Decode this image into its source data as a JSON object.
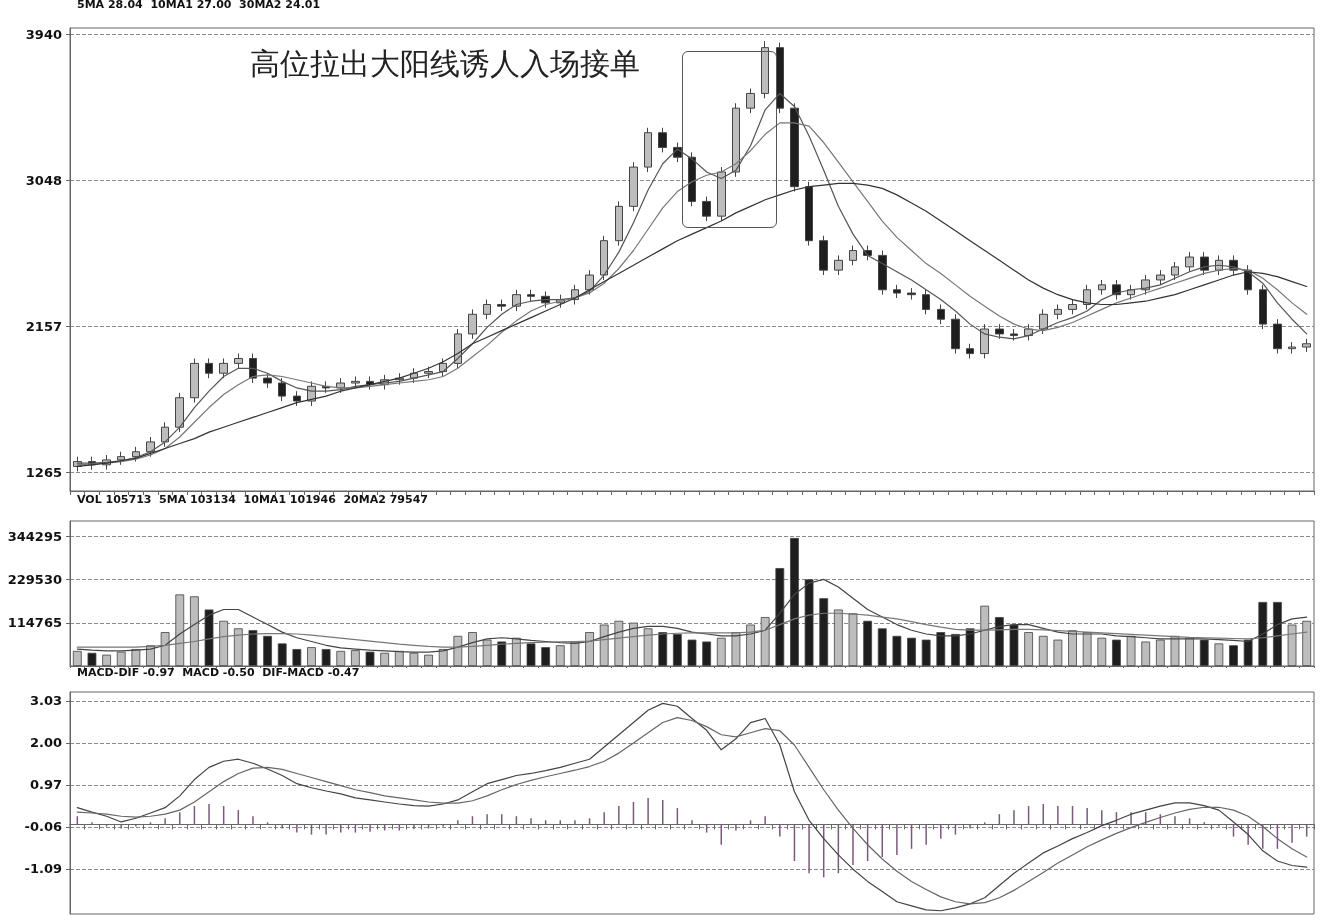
{
  "chart_data": [
    {
      "type": "candlestick",
      "subtitle": "5MA 28.04  10MA1 27.00  30MA2 24.01",
      "annotations": [
        "高位拉出大阳线诱人入场接单"
      ],
      "categories": [
        null,
        null,
        null,
        null,
        null,
        null,
        null,
        null,
        null,
        null,
        null,
        null,
        null,
        null,
        null,
        null,
        null,
        null,
        null,
        null,
        null,
        null,
        null,
        null,
        null,
        null,
        null,
        null,
        null,
        null,
        null,
        null,
        null,
        null,
        null,
        null,
        null,
        null,
        null,
        null,
        null,
        null,
        null,
        null,
        null,
        null,
        null,
        null,
        null,
        null,
        null,
        null,
        null,
        null,
        null,
        null,
        null,
        null,
        null,
        null,
        null,
        null,
        null,
        null,
        null,
        null,
        null,
        null,
        null,
        null,
        null,
        null,
        null,
        null,
        null,
        null,
        null,
        null,
        null,
        null,
        null,
        null,
        null,
        null,
        null
      ],
      "series": [
        {
          "ohlc": [
            [
              1300,
              1360,
              1270,
              1330
            ],
            [
              1330,
              1360,
              1280,
              1310
            ],
            [
              1310,
              1370,
              1280,
              1340
            ],
            [
              1340,
              1390,
              1310,
              1360
            ],
            [
              1360,
              1420,
              1330,
              1390
            ],
            [
              1390,
              1480,
              1360,
              1450
            ],
            [
              1450,
              1570,
              1420,
              1540
            ],
            [
              1540,
              1750,
              1510,
              1720
            ],
            [
              1720,
              1960,
              1690,
              1930
            ],
            [
              1930,
              1960,
              1840,
              1870
            ],
            [
              1870,
              1960,
              1840,
              1930
            ],
            [
              1930,
              1990,
              1900,
              1960
            ],
            [
              1960,
              1990,
              1810,
              1840
            ],
            [
              1840,
              1870,
              1780,
              1810
            ],
            [
              1810,
              1840,
              1700,
              1730
            ],
            [
              1730,
              1760,
              1670,
              1700
            ],
            [
              1700,
              1820,
              1670,
              1790
            ],
            [
              1790,
              1820,
              1750,
              1780
            ],
            [
              1780,
              1840,
              1750,
              1810
            ],
            [
              1810,
              1850,
              1780,
              1820
            ],
            [
              1820,
              1850,
              1770,
              1800
            ],
            [
              1800,
              1860,
              1770,
              1830
            ],
            [
              1830,
              1870,
              1800,
              1840
            ],
            [
              1840,
              1900,
              1810,
              1870
            ],
            [
              1870,
              1910,
              1840,
              1880
            ],
            [
              1880,
              1960,
              1850,
              1930
            ],
            [
              1930,
              2140,
              1900,
              2110
            ],
            [
              2110,
              2260,
              2080,
              2230
            ],
            [
              2230,
              2320,
              2200,
              2290
            ],
            [
              2290,
              2320,
              2250,
              2280
            ],
            [
              2280,
              2380,
              2250,
              2350
            ],
            [
              2350,
              2380,
              2310,
              2340
            ],
            [
              2340,
              2370,
              2270,
              2300
            ],
            [
              2300,
              2350,
              2270,
              2320
            ],
            [
              2320,
              2410,
              2290,
              2380
            ],
            [
              2380,
              2500,
              2350,
              2470
            ],
            [
              2470,
              2710,
              2440,
              2680
            ],
            [
              2680,
              2920,
              2650,
              2890
            ],
            [
              2890,
              3160,
              2860,
              3130
            ],
            [
              3130,
              3370,
              3100,
              3340
            ],
            [
              3340,
              3370,
              3220,
              3250
            ],
            [
              3250,
              3280,
              3160,
              3190
            ],
            [
              3190,
              3220,
              2890,
              2920
            ],
            [
              2920,
              2950,
              2800,
              2830
            ],
            [
              2830,
              3130,
              2800,
              3100
            ],
            [
              3100,
              3520,
              3070,
              3490
            ],
            [
              3490,
              3610,
              3460,
              3580
            ],
            [
              3580,
              3900,
              3550,
              3860
            ],
            [
              3860,
              3890,
              3460,
              3490
            ],
            [
              3490,
              3520,
              2980,
              3010
            ],
            [
              3010,
              3040,
              2650,
              2680
            ],
            [
              2680,
              2710,
              2470,
              2500
            ],
            [
              2500,
              2590,
              2470,
              2560
            ],
            [
              2560,
              2650,
              2530,
              2620
            ],
            [
              2620,
              2650,
              2560,
              2590
            ],
            [
              2590,
              2620,
              2350,
              2380
            ],
            [
              2380,
              2410,
              2330,
              2360
            ],
            [
              2360,
              2390,
              2320,
              2350
            ],
            [
              2350,
              2380,
              2230,
              2260
            ],
            [
              2260,
              2290,
              2170,
              2200
            ],
            [
              2200,
              2230,
              1990,
              2020
            ],
            [
              2020,
              2050,
              1960,
              1990
            ],
            [
              1990,
              2170,
              1960,
              2140
            ],
            [
              2140,
              2170,
              2080,
              2110
            ],
            [
              2110,
              2140,
              2070,
              2100
            ],
            [
              2100,
              2170,
              2070,
              2140
            ],
            [
              2140,
              2260,
              2110,
              2230
            ],
            [
              2230,
              2290,
              2200,
              2260
            ],
            [
              2260,
              2320,
              2230,
              2290
            ],
            [
              2290,
              2410,
              2260,
              2380
            ],
            [
              2380,
              2440,
              2350,
              2410
            ],
            [
              2410,
              2440,
              2320,
              2350
            ],
            [
              2350,
              2410,
              2320,
              2380
            ],
            [
              2380,
              2470,
              2350,
              2440
            ],
            [
              2440,
              2500,
              2410,
              2470
            ],
            [
              2470,
              2550,
              2440,
              2520
            ],
            [
              2520,
              2610,
              2490,
              2580
            ],
            [
              2580,
              2610,
              2470,
              2500
            ],
            [
              2500,
              2590,
              2470,
              2560
            ],
            [
              2560,
              2590,
              2470,
              2500
            ],
            [
              2500,
              2530,
              2350,
              2380
            ],
            [
              2380,
              2410,
              2140,
              2170
            ],
            [
              2170,
              2200,
              1990,
              2020
            ],
            [
              2020,
              2060,
              1990,
              2030
            ],
            [
              2030,
              2080,
              2000,
              2050
            ]
          ],
          "colors": [
            "#bdbdbd",
            "#1e1e1e",
            "#bdbdbd",
            "#bdbdbd",
            "#bdbdbd",
            "#bdbdbd",
            "#bdbdbd",
            "#bdbdbd",
            "#bdbdbd",
            "#1e1e1e",
            "#bdbdbd",
            "#bdbdbd",
            "#1e1e1e",
            "#1e1e1e",
            "#1e1e1e",
            "#1e1e1e",
            "#bdbdbd",
            "#1e1e1e",
            "#bdbdbd",
            "#bdbdbd",
            "#1e1e1e",
            "#bdbdbd",
            "#bdbdbd",
            "#bdbdbd",
            "#bdbdbd",
            "#bdbdbd",
            "#bdbdbd",
            "#bdbdbd",
            "#bdbdbd",
            "#1e1e1e",
            "#bdbdbd",
            "#1e1e1e",
            "#1e1e1e",
            "#bdbdbd",
            "#bdbdbd",
            "#bdbdbd",
            "#bdbdbd",
            "#bdbdbd",
            "#bdbdbd",
            "#bdbdbd",
            "#1e1e1e",
            "#1e1e1e",
            "#1e1e1e",
            "#1e1e1e",
            "#bdbdbd",
            "#bdbdbd",
            "#bdbdbd",
            "#bdbdbd",
            "#1e1e1e",
            "#1e1e1e",
            "#1e1e1e",
            "#1e1e1e",
            "#bdbdbd",
            "#bdbdbd",
            "#1e1e1e",
            "#1e1e1e",
            "#1e1e1e",
            "#1e1e1e",
            "#1e1e1e",
            "#1e1e1e",
            "#1e1e1e",
            "#1e1e1e",
            "#bdbdbd",
            "#1e1e1e",
            "#1e1e1e",
            "#bdbdbd",
            "#bdbdbd",
            "#bdbdbd",
            "#bdbdbd",
            "#bdbdbd",
            "#bdbdbd",
            "#1e1e1e",
            "#bdbdbd",
            "#bdbdbd",
            "#bdbdbd",
            "#bdbdbd",
            "#bdbdbd",
            "#1e1e1e",
            "#bdbdbd",
            "#1e1e1e",
            "#1e1e1e",
            "#1e1e1e",
            "#1e1e1e",
            "#bdbdbd",
            "#bdbdbd"
          ]
        },
        {
          "type": "line",
          "color": "#555555",
          "values": [
            1320,
            1320,
            1325,
            1335,
            1355,
            1390,
            1450,
            1540,
            1660,
            1760,
            1850,
            1900,
            1900,
            1870,
            1820,
            1780,
            1760,
            1760,
            1770,
            1790,
            1800,
            1810,
            1820,
            1840,
            1860,
            1880,
            1960,
            2050,
            2150,
            2230,
            2290,
            2310,
            2320,
            2320,
            2330,
            2370,
            2470,
            2610,
            2790,
            2990,
            3150,
            3240,
            3180,
            3100,
            3060,
            3110,
            3260,
            3480,
            3580,
            3500,
            3320,
            3110,
            2890,
            2720,
            2590,
            2540,
            2490,
            2440,
            2380,
            2320,
            2250,
            2170,
            2110,
            2090,
            2080,
            2100,
            2140,
            2180,
            2210,
            2250,
            2320,
            2360,
            2380,
            2390,
            2410,
            2450,
            2490,
            2520,
            2530,
            2520,
            2490,
            2420,
            2300,
            2200,
            2110
          ]
        },
        {
          "type": "line",
          "color": "#777777",
          "values": [
            1310,
            1315,
            1320,
            1330,
            1345,
            1370,
            1410,
            1480,
            1570,
            1660,
            1740,
            1800,
            1850,
            1860,
            1850,
            1830,
            1810,
            1790,
            1780,
            1780,
            1790,
            1800,
            1810,
            1820,
            1830,
            1850,
            1900,
            1970,
            2040,
            2120,
            2190,
            2250,
            2290,
            2310,
            2330,
            2360,
            2420,
            2510,
            2620,
            2750,
            2880,
            2980,
            3040,
            3080,
            3100,
            3150,
            3230,
            3330,
            3400,
            3400,
            3380,
            3280,
            3160,
            3040,
            2920,
            2800,
            2700,
            2620,
            2540,
            2480,
            2410,
            2340,
            2280,
            2220,
            2170,
            2140,
            2130,
            2150,
            2180,
            2220,
            2260,
            2300,
            2330,
            2360,
            2390,
            2420,
            2450,
            2480,
            2500,
            2510,
            2500,
            2450,
            2380,
            2300,
            2230
          ]
        },
        {
          "type": "line",
          "color": "#333333",
          "values": [
            1300,
            1310,
            1320,
            1335,
            1350,
            1380,
            1410,
            1440,
            1470,
            1510,
            1540,
            1570,
            1600,
            1630,
            1660,
            1690,
            1710,
            1730,
            1760,
            1780,
            1800,
            1820,
            1840,
            1870,
            1900,
            1940,
            1990,
            2050,
            2090,
            2130,
            2170,
            2210,
            2250,
            2290,
            2330,
            2380,
            2430,
            2480,
            2530,
            2580,
            2630,
            2680,
            2720,
            2760,
            2800,
            2850,
            2890,
            2930,
            2960,
            2990,
            3010,
            3020,
            3030,
            3030,
            3020,
            3000,
            2960,
            2910,
            2860,
            2800,
            2740,
            2680,
            2620,
            2560,
            2500,
            2440,
            2390,
            2350,
            2320,
            2300,
            2290,
            2290,
            2300,
            2310,
            2330,
            2350,
            2380,
            2410,
            2440,
            2470,
            2490,
            2480,
            2460,
            2430,
            2400
          ]
        }
      ],
      "ylim": [
        1150,
        3980
      ],
      "yticks": [
        1265,
        2157,
        3048,
        3940
      ],
      "grid": "y",
      "tick_labels": "y",
      "marker": "none",
      "line_style": "solid"
    },
    {
      "type": "bar",
      "subtitle": "VOL 105713  5MA 103134  10MA1 101946  20MA2 79547",
      "categories": [
        null,
        null,
        null,
        null,
        null,
        null,
        null,
        null,
        null,
        null,
        null,
        null,
        null,
        null,
        null,
        null,
        null,
        null,
        null,
        null,
        null,
        null,
        null,
        null,
        null,
        null,
        null,
        null,
        null,
        null,
        null,
        null,
        null,
        null,
        null,
        null,
        null,
        null,
        null,
        null,
        null,
        null,
        null,
        null,
        null,
        null,
        null,
        null,
        null,
        null,
        null,
        null,
        null,
        null,
        null,
        null,
        null,
        null,
        null,
        null,
        null,
        null,
        null,
        null,
        null,
        null,
        null,
        null,
        null,
        null,
        null,
        null,
        null,
        null,
        null,
        null,
        null,
        null,
        null,
        null,
        null,
        null,
        null,
        null,
        null
      ],
      "series": [
        {
          "values": [
            40000,
            35000,
            30000,
            38000,
            45000,
            55000,
            90000,
            190000,
            185000,
            150000,
            120000,
            100000,
            95000,
            80000,
            60000,
            45000,
            50000,
            45000,
            40000,
            42000,
            38000,
            35000,
            40000,
            35000,
            30000,
            45000,
            80000,
            90000,
            70000,
            65000,
            75000,
            60000,
            50000,
            55000,
            65000,
            90000,
            110000,
            120000,
            115000,
            100000,
            90000,
            85000,
            70000,
            65000,
            75000,
            90000,
            110000,
            130000,
            260000,
            340000,
            230000,
            180000,
            150000,
            140000,
            120000,
            100000,
            80000,
            75000,
            70000,
            90000,
            85000,
            100000,
            160000,
            130000,
            110000,
            90000,
            80000,
            70000,
            95000,
            90000,
            75000,
            70000,
            80000,
            65000,
            70000,
            80000,
            75000,
            70000,
            60000,
            55000,
            70000,
            170000,
            170000,
            110000,
            120000
          ],
          "colors": [
            "#bdbdbd",
            "#1e1e1e",
            "#bdbdbd",
            "#bdbdbd",
            "#bdbdbd",
            "#bdbdbd",
            "#bdbdbd",
            "#bdbdbd",
            "#bdbdbd",
            "#1e1e1e",
            "#bdbdbd",
            "#bdbdbd",
            "#1e1e1e",
            "#1e1e1e",
            "#1e1e1e",
            "#1e1e1e",
            "#bdbdbd",
            "#1e1e1e",
            "#bdbdbd",
            "#bdbdbd",
            "#1e1e1e",
            "#bdbdbd",
            "#bdbdbd",
            "#bdbdbd",
            "#bdbdbd",
            "#bdbdbd",
            "#bdbdbd",
            "#bdbdbd",
            "#bdbdbd",
            "#1e1e1e",
            "#bdbdbd",
            "#1e1e1e",
            "#1e1e1e",
            "#bdbdbd",
            "#bdbdbd",
            "#bdbdbd",
            "#bdbdbd",
            "#bdbdbd",
            "#bdbdbd",
            "#bdbdbd",
            "#1e1e1e",
            "#1e1e1e",
            "#1e1e1e",
            "#1e1e1e",
            "#bdbdbd",
            "#bdbdbd",
            "#bdbdbd",
            "#bdbdbd",
            "#1e1e1e",
            "#1e1e1e",
            "#1e1e1e",
            "#1e1e1e",
            "#bdbdbd",
            "#bdbdbd",
            "#1e1e1e",
            "#1e1e1e",
            "#1e1e1e",
            "#1e1e1e",
            "#1e1e1e",
            "#1e1e1e",
            "#1e1e1e",
            "#1e1e1e",
            "#bdbdbd",
            "#1e1e1e",
            "#1e1e1e",
            "#bdbdbd",
            "#bdbdbd",
            "#bdbdbd",
            "#bdbdbd",
            "#bdbdbd",
            "#bdbdbd",
            "#1e1e1e",
            "#bdbdbd",
            "#bdbdbd",
            "#bdbdbd",
            "#bdbdbd",
            "#bdbdbd",
            "#1e1e1e",
            "#bdbdbd",
            "#1e1e1e",
            "#1e1e1e",
            "#1e1e1e",
            "#1e1e1e",
            "#bdbdbd",
            "#bdbdbd"
          ]
        },
        {
          "type": "line",
          "color": "#444444",
          "values": [
            45000,
            42000,
            40000,
            40000,
            42000,
            45000,
            55000,
            85000,
            110000,
            135000,
            150000,
            150000,
            130000,
            110000,
            90000,
            75000,
            65000,
            55000,
            48000,
            45000,
            42000,
            40000,
            38000,
            37000,
            37000,
            40000,
            50000,
            62000,
            72000,
            75000,
            72000,
            68000,
            65000,
            62000,
            60000,
            65000,
            78000,
            90000,
            100000,
            105000,
            105000,
            100000,
            90000,
            85000,
            80000,
            80000,
            85000,
            95000,
            140000,
            190000,
            220000,
            230000,
            210000,
            180000,
            150000,
            130000,
            110000,
            95000,
            85000,
            80000,
            80000,
            85000,
            95000,
            105000,
            110000,
            110000,
            100000,
            90000,
            85000,
            85000,
            85000,
            80000,
            78000,
            75000,
            72000,
            72000,
            72000,
            72000,
            70000,
            68000,
            65000,
            85000,
            110000,
            125000,
            130000
          ]
        },
        {
          "type": "line",
          "color": "#777777",
          "values": [
            50000,
            50000,
            50000,
            50000,
            50000,
            52000,
            55000,
            60000,
            65000,
            72000,
            78000,
            82000,
            85000,
            86000,
            86000,
            85000,
            82000,
            78000,
            74000,
            70000,
            66000,
            62000,
            58000,
            55000,
            52000,
            50000,
            50000,
            52000,
            55000,
            58000,
            60000,
            62000,
            63000,
            64000,
            65000,
            66000,
            70000,
            74000,
            78000,
            82000,
            85000,
            87000,
            88000,
            88000,
            88000,
            88000,
            90000,
            95000,
            110000,
            125000,
            135000,
            140000,
            140000,
            138000,
            135000,
            130000,
            125000,
            118000,
            110000,
            103000,
            97000,
            95000,
            95000,
            96000,
            97000,
            97000,
            96000,
            94000,
            92000,
            90000,
            88000,
            86000,
            84000,
            82000,
            80000,
            78000,
            76000,
            75000,
            74000,
            73000,
            72000,
            75000,
            80000,
            85000,
            90000
          ]
        }
      ],
      "ylim": [
        0,
        385000
      ],
      "yticks": [
        114765,
        229530,
        344295
      ],
      "grid": "y",
      "tick_labels": "y",
      "marker": "none",
      "line_style": "solid"
    },
    {
      "type": "line",
      "subtitle": "MACD-DIF -0.97  MACD -0.50  DIF-MACD -0.47",
      "categories": [
        null,
        null,
        null,
        null,
        null,
        null,
        null,
        null,
        null,
        null,
        null,
        null,
        null,
        null,
        null,
        null,
        null,
        null,
        null,
        null,
        null,
        null,
        null,
        null,
        null,
        null,
        null,
        null,
        null,
        null,
        null,
        null,
        null,
        null,
        null,
        null,
        null,
        null,
        null,
        null,
        null,
        null,
        null,
        null,
        null,
        null,
        null,
        null,
        null,
        null,
        null,
        null,
        null,
        null,
        null,
        null,
        null,
        null,
        null,
        null,
        null,
        null,
        null,
        null,
        null,
        null,
        null,
        null,
        null,
        null,
        null,
        null,
        null,
        null,
        null,
        null,
        null,
        null,
        null,
        null,
        null,
        null,
        null,
        null,
        null
      ],
      "series": [
        {
          "type": "bar",
          "color": "#7a5a7a",
          "values": [
            0.2,
            0.05,
            -0.05,
            -0.1,
            -0.05,
            0.05,
            0.15,
            0.3,
            0.45,
            0.5,
            0.45,
            0.35,
            0.2,
            0.05,
            -0.1,
            -0.2,
            -0.25,
            -0.25,
            -0.2,
            -0.2,
            -0.18,
            -0.15,
            -0.15,
            -0.12,
            -0.1,
            -0.05,
            0.1,
            0.2,
            0.25,
            0.25,
            0.2,
            0.15,
            0.1,
            0.1,
            0.1,
            0.15,
            0.3,
            0.45,
            0.55,
            0.65,
            0.6,
            0.4,
            0.1,
            -0.2,
            -0.5,
            -0.15,
            0.1,
            0.2,
            -0.3,
            -0.9,
            -1.2,
            -1.3,
            -1.2,
            -1.0,
            -0.9,
            -0.8,
            -0.75,
            -0.6,
            -0.5,
            -0.35,
            -0.25,
            -0.1,
            0.05,
            0.25,
            0.35,
            0.45,
            0.5,
            0.45,
            0.45,
            0.4,
            0.35,
            0.3,
            0.3,
            0.3,
            0.25,
            0.2,
            0.15,
            0.05,
            -0.05,
            -0.3,
            -0.5,
            -0.6,
            -0.6,
            -0.45,
            -0.3
          ]
        },
        {
          "color": "#444444",
          "values": [
            0.41,
            0.3,
            0.2,
            0.06,
            0.15,
            0.28,
            0.41,
            0.7,
            1.1,
            1.4,
            1.55,
            1.6,
            1.5,
            1.36,
            1.2,
            1.0,
            0.9,
            0.82,
            0.75,
            0.65,
            0.6,
            0.55,
            0.5,
            0.46,
            0.45,
            0.5,
            0.6,
            0.8,
            1.0,
            1.1,
            1.2,
            1.25,
            1.32,
            1.4,
            1.5,
            1.6,
            1.9,
            2.2,
            2.5,
            2.8,
            2.97,
            2.9,
            2.6,
            2.31,
            1.83,
            2.1,
            2.5,
            2.6,
            1.95,
            0.8,
            0.1,
            -0.35,
            -0.75,
            -1.1,
            -1.4,
            -1.65,
            -1.9,
            -2.0,
            -2.1,
            -2.12,
            -2.05,
            -1.95,
            -1.8,
            -1.5,
            -1.2,
            -0.95,
            -0.7,
            -0.53,
            -0.35,
            -0.2,
            -0.03,
            0.1,
            0.25,
            0.35,
            0.45,
            0.53,
            0.53,
            0.46,
            0.35,
            0.06,
            -0.25,
            -0.65,
            -0.9,
            -1.01,
            -1.05
          ]
        },
        {
          "color": "#666666",
          "values": [
            0.3,
            0.28,
            0.25,
            0.2,
            0.18,
            0.2,
            0.25,
            0.35,
            0.55,
            0.8,
            1.05,
            1.25,
            1.38,
            1.4,
            1.35,
            1.25,
            1.15,
            1.05,
            0.95,
            0.85,
            0.78,
            0.7,
            0.65,
            0.6,
            0.55,
            0.52,
            0.52,
            0.58,
            0.7,
            0.85,
            0.98,
            1.08,
            1.17,
            1.25,
            1.33,
            1.42,
            1.55,
            1.75,
            2.0,
            2.25,
            2.5,
            2.62,
            2.55,
            2.4,
            2.2,
            2.15,
            2.25,
            2.35,
            2.3,
            1.95,
            1.4,
            0.85,
            0.35,
            -0.1,
            -0.5,
            -0.85,
            -1.15,
            -1.4,
            -1.6,
            -1.78,
            -1.9,
            -1.95,
            -1.92,
            -1.8,
            -1.62,
            -1.4,
            -1.18,
            -0.95,
            -0.75,
            -0.55,
            -0.38,
            -0.22,
            -0.08,
            0.05,
            0.17,
            0.28,
            0.37,
            0.42,
            0.42,
            0.35,
            0.2,
            -0.05,
            -0.35,
            -0.6,
            -0.8
          ]
        }
      ],
      "ylim": [
        -2.2,
        3.25
      ],
      "yticks": [
        3.03,
        {
          "value": 2,
          "label": "2.00"
        },
        0.97,
        -0.06,
        -1.09
      ],
      "grid": "y",
      "tick_labels": "y",
      "marker": "none",
      "line_style": "solid"
    }
  ]
}
